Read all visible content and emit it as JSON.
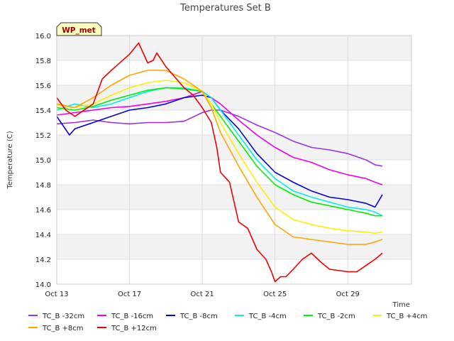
{
  "chart_data": {
    "type": "line",
    "title": "Temperatures Set B",
    "xlabel": "Time",
    "ylabel": "Temperature (C)",
    "badge": "WP_met",
    "xlim": [
      0,
      19.5
    ],
    "ylim": [
      14.0,
      16.0
    ],
    "x_ticks": [
      {
        "value": 0,
        "label": "Oct 13"
      },
      {
        "value": 4,
        "label": "Oct 17"
      },
      {
        "value": 8,
        "label": "Oct 21"
      },
      {
        "value": 12,
        "label": "Oct 25"
      },
      {
        "value": 16,
        "label": "Oct 29"
      }
    ],
    "y_ticks": [
      {
        "value": 14.0,
        "label": "14.0"
      },
      {
        "value": 14.2,
        "label": "14.2"
      },
      {
        "value": 14.4,
        "label": "14.4"
      },
      {
        "value": 14.6,
        "label": "14.6"
      },
      {
        "value": 14.8,
        "label": "14.8"
      },
      {
        "value": 15.0,
        "label": "15.0"
      },
      {
        "value": 15.2,
        "label": "15.2"
      },
      {
        "value": 15.4,
        "label": "15.4"
      },
      {
        "value": 15.6,
        "label": "15.6"
      },
      {
        "value": 15.8,
        "label": "15.8"
      },
      {
        "value": 16.0,
        "label": "16.0"
      }
    ],
    "grid": true,
    "legend_position": "bottom",
    "x_unit": "days after Oct 13",
    "series": [
      {
        "name": "TC_B -32cm",
        "color": "#9b30e6",
        "x": [
          0,
          1,
          2,
          3,
          4,
          5,
          6,
          7,
          8,
          8.5,
          9,
          10,
          11,
          12,
          13,
          14,
          15,
          16,
          17,
          17.5,
          17.9
        ],
        "y": [
          15.29,
          15.3,
          15.32,
          15.3,
          15.29,
          15.3,
          15.3,
          15.31,
          15.38,
          15.4,
          15.4,
          15.35,
          15.28,
          15.22,
          15.15,
          15.1,
          15.08,
          15.05,
          15.0,
          14.96,
          14.95
        ]
      },
      {
        "name": "TC_B -16cm",
        "color": "#ee00ee",
        "x": [
          0,
          1,
          2,
          3,
          4,
          5,
          6,
          7,
          8,
          8.5,
          9,
          10,
          11,
          12,
          13,
          14,
          15,
          16,
          17,
          17.5,
          17.9
        ],
        "y": [
          15.36,
          15.38,
          15.4,
          15.42,
          15.43,
          15.45,
          15.47,
          15.5,
          15.55,
          15.5,
          15.45,
          15.32,
          15.2,
          15.1,
          15.02,
          14.98,
          14.92,
          14.88,
          14.85,
          14.82,
          14.8
        ]
      },
      {
        "name": "TC_B -8cm",
        "color": "#0000dd",
        "x": [
          0,
          0.7,
          1,
          2,
          3,
          4,
          5,
          6,
          7,
          8,
          8.5,
          9,
          10,
          11,
          12,
          13,
          14,
          15,
          16,
          17,
          17.5,
          17.9
        ],
        "y": [
          15.35,
          15.2,
          15.25,
          15.3,
          15.35,
          15.4,
          15.42,
          15.45,
          15.5,
          15.52,
          15.5,
          15.4,
          15.25,
          15.05,
          14.9,
          14.82,
          14.75,
          14.7,
          14.68,
          14.65,
          14.62,
          14.72
        ]
      },
      {
        "name": "TC_B -4cm",
        "color": "#00eeee",
        "x": [
          0,
          1,
          2,
          3,
          4,
          5,
          6,
          7,
          8,
          8.5,
          9,
          10,
          11,
          12,
          13,
          14,
          15,
          16,
          17,
          17.5,
          17.9
        ],
        "y": [
          15.4,
          15.45,
          15.42,
          15.45,
          15.5,
          15.55,
          15.58,
          15.58,
          15.55,
          15.5,
          15.4,
          15.2,
          15.0,
          14.85,
          14.75,
          14.7,
          14.66,
          14.62,
          14.6,
          14.58,
          14.55
        ]
      },
      {
        "name": "TC_B -2cm",
        "color": "#00ee00",
        "x": [
          0,
          1,
          2,
          3,
          4,
          5,
          6,
          7,
          8,
          8.5,
          9,
          10,
          11,
          12,
          13,
          14,
          15,
          16,
          17,
          17.5,
          17.9
        ],
        "y": [
          15.42,
          15.4,
          15.43,
          15.48,
          15.52,
          15.56,
          15.58,
          15.57,
          15.55,
          15.45,
          15.35,
          15.15,
          14.95,
          14.8,
          14.72,
          14.66,
          14.63,
          14.6,
          14.57,
          14.55,
          14.55
        ]
      },
      {
        "name": "TC_B +4cm",
        "color": "#ffee00",
        "x": [
          0,
          1,
          2,
          3,
          4,
          5,
          6,
          7,
          8,
          8.5,
          9,
          10,
          11,
          12,
          13,
          14,
          15,
          16,
          17,
          17.5,
          17.9
        ],
        "y": [
          15.44,
          15.42,
          15.45,
          15.52,
          15.58,
          15.62,
          15.64,
          15.62,
          15.55,
          15.45,
          15.3,
          15.05,
          14.82,
          14.62,
          14.52,
          14.48,
          14.45,
          14.43,
          14.42,
          14.41,
          14.42
        ]
      },
      {
        "name": "TC_B +8cm",
        "color": "#ffa500",
        "x": [
          0,
          1,
          2,
          3,
          4,
          5,
          6,
          7,
          8,
          8.5,
          9,
          10,
          11,
          12,
          13,
          14,
          15,
          16,
          17,
          17.5,
          17.9
        ],
        "y": [
          15.45,
          15.42,
          15.5,
          15.6,
          15.68,
          15.72,
          15.72,
          15.65,
          15.55,
          15.42,
          15.22,
          14.95,
          14.7,
          14.48,
          14.38,
          14.36,
          14.34,
          14.32,
          14.32,
          14.34,
          14.36
        ]
      },
      {
        "name": "TC_B +12cm",
        "color": "#ee0000",
        "x": [
          0,
          0.5,
          1,
          2,
          2.5,
          3,
          4,
          4.5,
          5,
          5.3,
          5.5,
          6,
          7,
          7.5,
          8,
          8.5,
          8.8,
          9,
          9.5,
          10,
          10.5,
          11,
          11.5,
          11.8,
          12,
          12.3,
          12.6,
          13,
          13.5,
          14,
          14.5,
          15,
          16,
          16.5,
          17,
          17.5,
          17.9
        ],
        "y": [
          15.5,
          15.4,
          15.35,
          15.45,
          15.65,
          15.72,
          15.85,
          15.94,
          15.78,
          15.8,
          15.86,
          15.75,
          15.58,
          15.52,
          15.42,
          15.3,
          15.1,
          14.9,
          14.82,
          14.5,
          14.45,
          14.28,
          14.2,
          14.1,
          14.02,
          14.06,
          14.06,
          14.12,
          14.2,
          14.25,
          14.18,
          14.12,
          14.1,
          14.1,
          14.15,
          14.2,
          14.25
        ]
      }
    ]
  }
}
